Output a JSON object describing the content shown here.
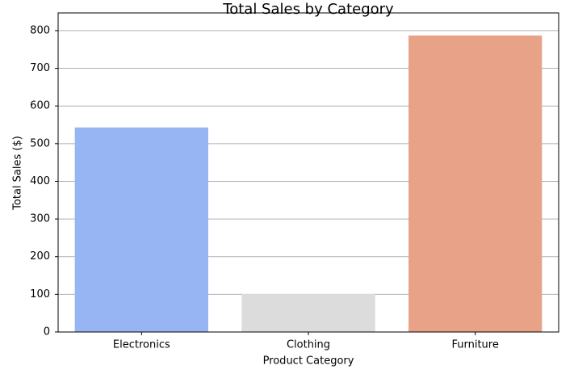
{
  "chart_data": {
    "type": "bar",
    "title": "Total Sales by Category",
    "x_label": "Product Category",
    "y_label": "Total Sales ($)",
    "categories": [
      "Electronics",
      "Clothing",
      "Furniture"
    ],
    "values": [
      543,
      101,
      787
    ],
    "colors": [
      "#98b5f3",
      "#dcdcdc",
      "#e8a288"
    ],
    "ylim": [
      0,
      847
    ],
    "yticks": [
      0,
      100,
      200,
      300,
      400,
      500,
      600,
      700,
      800
    ],
    "grid": true
  }
}
